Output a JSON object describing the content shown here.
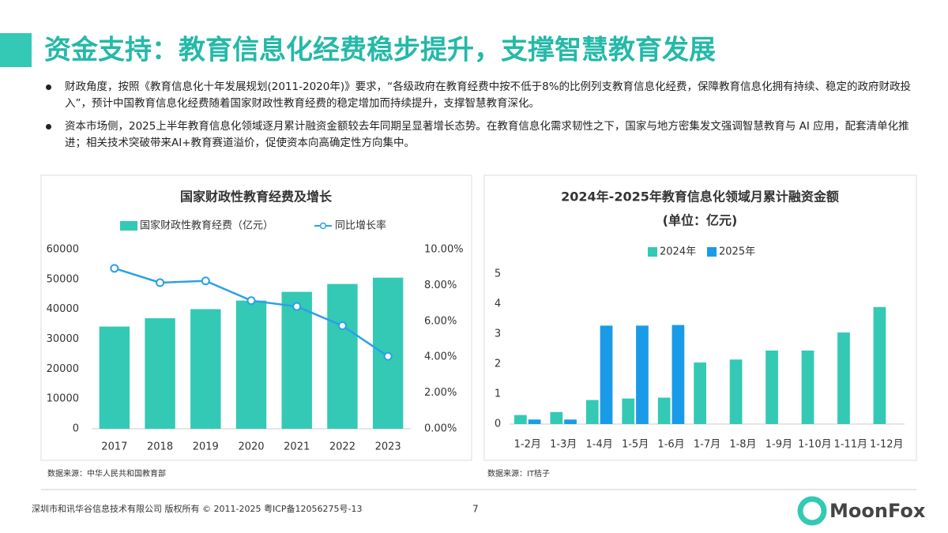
{
  "header": {
    "title": "资金支持：教育信息化经费稳步提升，支撑智慧教育发展"
  },
  "bullets": [
    "财政角度，按照《教育信息化十年发展规划(2011-2020年)》要求，“各级政府在教育经费中按不低于8%的比例列支教育信息化经费，保障教育信息化拥有持续、稳定的政府财政投入”，预计中国教育信息化经费随着国家财政性教育经费的稳定增加而持续提升，支撑智慧教育深化。",
    "资本市场侧，2025上半年教育信息化领域逐月累计融资金额较去年同期呈显著增长态势。在教育信息化需求韧性之下，国家与地方密集发文强调智慧教育与 AI 应用，配套清单化推进；相关技术突破带来AI+教育赛道溢价，促使资本向高确定性方向集中。"
  ],
  "chart_data": [
    {
      "type": "bar",
      "title": "国家财政性教育经费及增长",
      "source": "数据来源：中华人民共和国教育部",
      "categories": [
        "2017",
        "2018",
        "2019",
        "2020",
        "2021",
        "2022",
        "2023"
      ],
      "series": [
        {
          "name": "国家财政性教育经费（亿元）",
          "color": "#33c9b5",
          "values": [
            34208,
            36996,
            40047,
            42908,
            45835,
            48473,
            50582
          ]
        },
        {
          "name": "同比增长率",
          "type": "line",
          "axis": "y2",
          "color": "#2aa1e6",
          "values": [
            8.95,
            8.15,
            8.25,
            7.15,
            6.82,
            5.75,
            4.04
          ]
        }
      ],
      "ylim": [
        0,
        60000
      ],
      "yticks": [
        0,
        10000,
        20000,
        30000,
        40000,
        50000,
        60000
      ],
      "y2lim": [
        0,
        10
      ],
      "y2ticks": [
        {
          "value": 0,
          "label": "0.00%"
        },
        {
          "value": 2,
          "label": "2.00%"
        },
        {
          "value": 4,
          "label": "4.00%"
        },
        {
          "value": 6,
          "label": "6.00%"
        },
        {
          "value": 8,
          "label": "8.00%"
        },
        {
          "value": 10,
          "label": "10.00%"
        }
      ],
      "grid": false
    },
    {
      "type": "bar",
      "title": "2024年-2025年教育信息化领域月累计融资金额",
      "subtitle": "(单位：亿元)",
      "source": "数据来源：IT桔子",
      "categories": [
        "1-2月",
        "1-3月",
        "1-4月",
        "1-5月",
        "1-6月",
        "1-7月",
        "1-8月",
        "1-9月",
        "1-10月",
        "1-11月",
        "1-12月"
      ],
      "series": [
        {
          "name": "2024年",
          "color": "#33c9b5",
          "values": [
            0.3,
            0.4,
            0.8,
            0.85,
            0.88,
            2.05,
            2.15,
            2.45,
            2.45,
            3.05,
            3.9
          ]
        },
        {
          "name": "2025年",
          "color": "#1a9be8",
          "values": [
            0.15,
            0.15,
            3.28,
            3.28,
            3.3,
            null,
            null,
            null,
            null,
            null,
            null
          ]
        }
      ],
      "ylim": [
        0,
        5
      ],
      "yticks": [
        0,
        1,
        2,
        3,
        4,
        5
      ],
      "grid": false
    }
  ],
  "footer": {
    "copyright": "深圳市和讯华谷信息技术有限公司 版权所有 © 2011-2025 粤ICP备12056275号-13",
    "page": "7",
    "logo": "MoonFox"
  }
}
